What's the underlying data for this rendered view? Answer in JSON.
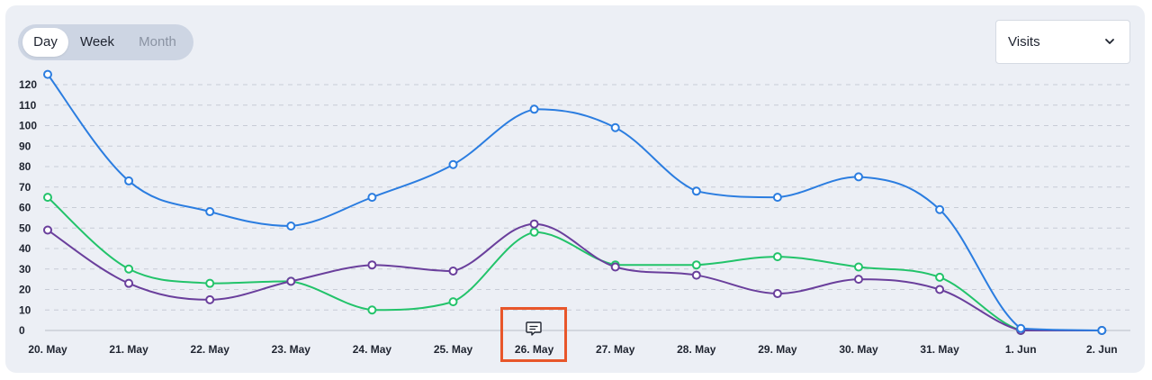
{
  "range_toggle": {
    "day": "Day",
    "week": "Week",
    "month": "Month"
  },
  "metric_select": {
    "selected": "Visits",
    "icon": "chevron-down-icon"
  },
  "annotation": {
    "icon": "comment-icon",
    "category": "26. May"
  },
  "colors": {
    "series_blue": "#2b7de0",
    "series_green": "#22c36a",
    "series_purple": "#6a3f9c",
    "highlight": "#e8562a"
  },
  "chart_data": {
    "type": "line",
    "categories": [
      "20. May",
      "21. May",
      "22. May",
      "23. May",
      "24. May",
      "25. May",
      "26. May",
      "27. May",
      "28. May",
      "29. May",
      "30. May",
      "31. May",
      "1. Jun",
      "2. Jun"
    ],
    "series": [
      {
        "values": [
          125,
          73,
          58,
          51,
          65,
          81,
          108,
          99,
          68,
          65,
          75,
          59,
          1,
          0
        ]
      },
      {
        "values": [
          65,
          30,
          23,
          24,
          10,
          14,
          48,
          32,
          32,
          36,
          31,
          26,
          0,
          0
        ]
      },
      {
        "values": [
          49,
          23,
          15,
          24,
          32,
          29,
          52,
          31,
          27,
          18,
          25,
          20,
          0,
          0
        ]
      }
    ],
    "yticks": [
      0,
      10,
      20,
      30,
      40,
      50,
      60,
      70,
      80,
      90,
      100,
      110,
      120
    ],
    "ylim": [
      0,
      125
    ],
    "grid": true
  }
}
